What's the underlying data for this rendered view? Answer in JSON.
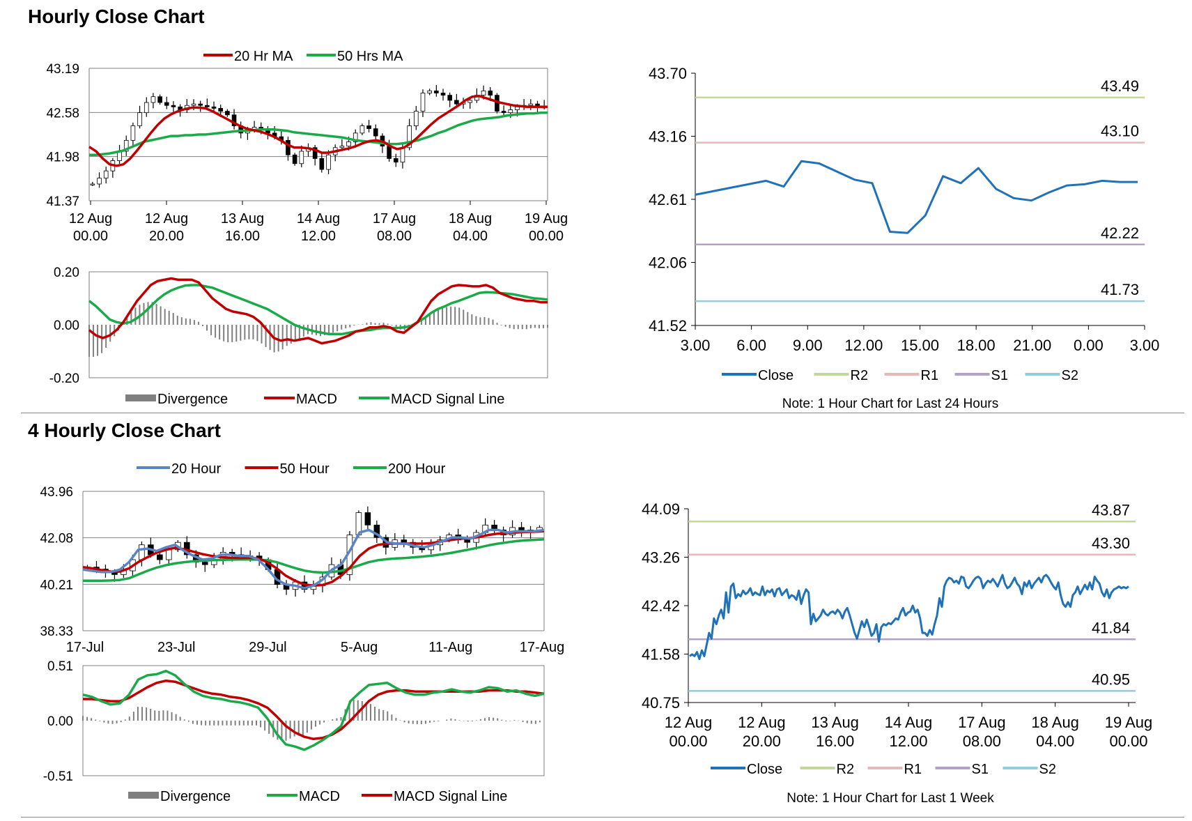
{
  "sections": [
    {
      "title": "Hourly Close Chart"
    },
    {
      "title": "4 Hourly Close Chart"
    }
  ],
  "colors": {
    "red": "#c00000",
    "green": "#1aaa4a",
    "blue": "#5b84c4",
    "close": "#1f72b8",
    "r2": "#c3d69b",
    "r1": "#e6b9b8",
    "s1": "#b3a2c7",
    "s2": "#93cddd",
    "grid": "#7f7f7f",
    "divergence": "#7f7f7f",
    "candle": "#000000"
  },
  "chart_data": [
    {
      "id": "h_price",
      "type": "candlestick",
      "title": "",
      "legend": [
        {
          "label": "20 Hr MA",
          "color": "red"
        },
        {
          "label": "50 Hrs MA",
          "color": "green"
        }
      ],
      "ylim": [
        41.37,
        43.19
      ],
      "yticks": [
        "43.19",
        "42.58",
        "41.98",
        "41.37"
      ],
      "xticks": [
        [
          "12 Aug",
          "00.00"
        ],
        [
          "12 Aug",
          "20.00"
        ],
        [
          "13 Aug",
          "16.00"
        ],
        [
          "14 Aug",
          "12.00"
        ],
        [
          "17 Aug",
          "08.00"
        ],
        [
          "18 Aug",
          "04.00"
        ],
        [
          "19 Aug",
          "00.00"
        ]
      ],
      "closes": [
        41.6,
        41.68,
        41.78,
        41.92,
        42.05,
        42.2,
        42.4,
        42.58,
        42.72,
        42.8,
        42.72,
        42.68,
        42.66,
        42.62,
        42.68,
        42.7,
        42.68,
        42.66,
        42.64,
        42.6,
        42.55,
        42.4,
        42.3,
        42.35,
        42.38,
        42.35,
        42.3,
        42.25,
        42.2,
        42.0,
        41.88,
        42.05,
        42.1,
        41.95,
        41.8,
        42.0,
        42.1,
        42.12,
        42.18,
        42.3,
        42.4,
        42.36,
        42.26,
        42.12,
        41.95,
        41.9,
        42.1,
        42.4,
        42.6,
        42.85,
        42.88,
        42.85,
        42.82,
        42.75,
        42.7,
        42.72,
        42.75,
        42.82,
        42.88,
        42.82,
        42.6,
        42.58,
        42.62,
        42.66,
        42.68,
        42.7,
        42.66,
        42.66
      ],
      "ma20": [
        42.11,
        42.05,
        41.95,
        41.87,
        41.85,
        41.87,
        41.95,
        42.06,
        42.18,
        42.3,
        42.41,
        42.5,
        42.56,
        42.6,
        42.63,
        42.65,
        42.65,
        42.64,
        42.6,
        42.55,
        42.5,
        42.45,
        42.4,
        42.36,
        42.34,
        42.32,
        42.29,
        42.25,
        42.2,
        42.14,
        42.1,
        42.1,
        42.09,
        42.07,
        42.03,
        42.03,
        42.05,
        42.07,
        42.09,
        42.12,
        42.16,
        42.19,
        42.2,
        42.18,
        42.12,
        42.08,
        42.1,
        42.16,
        42.24,
        42.33,
        42.42,
        42.5,
        42.56,
        42.62,
        42.68,
        42.75,
        42.8,
        42.81,
        42.78,
        42.75,
        42.72,
        42.7,
        42.68,
        42.67,
        42.66,
        42.66,
        42.66,
        42.66
      ],
      "ma50": [
        42.0,
        42.0,
        42.01,
        42.02,
        42.04,
        42.06,
        42.1,
        42.14,
        42.18,
        42.2,
        42.22,
        42.24,
        42.26,
        42.26,
        42.27,
        42.27,
        42.28,
        42.28,
        42.29,
        42.3,
        42.31,
        42.32,
        42.33,
        42.33,
        42.34,
        42.35,
        42.35,
        42.35,
        42.34,
        42.33,
        42.31,
        42.3,
        42.29,
        42.28,
        42.27,
        42.26,
        42.25,
        42.24,
        42.22,
        42.2,
        42.19,
        42.18,
        42.17,
        42.16,
        42.15,
        42.15,
        42.16,
        42.18,
        42.2,
        42.23,
        42.26,
        42.3,
        42.33,
        42.37,
        42.41,
        42.44,
        42.47,
        42.49,
        42.5,
        42.51,
        42.52,
        42.54,
        42.55,
        42.56,
        42.57,
        42.57,
        42.58,
        42.58
      ]
    },
    {
      "id": "h_macd",
      "type": "macd",
      "legend": [
        {
          "label": "Divergence",
          "color": "divergence",
          "kind": "bar"
        },
        {
          "label": "MACD",
          "color": "red"
        },
        {
          "label": "MACD Signal Line",
          "color": "green"
        }
      ],
      "ylim": [
        -0.2,
        0.2
      ],
      "yticks": [
        "0.20",
        "0.00",
        "-0.20"
      ],
      "macd": [
        -0.02,
        -0.04,
        -0.05,
        -0.04,
        -0.02,
        0.01,
        0.05,
        0.09,
        0.12,
        0.15,
        0.165,
        0.17,
        0.175,
        0.17,
        0.17,
        0.17,
        0.16,
        0.13,
        0.1,
        0.08,
        0.06,
        0.05,
        0.045,
        0.04,
        0.03,
        0.01,
        -0.02,
        -0.05,
        -0.06,
        -0.055,
        -0.06,
        -0.055,
        -0.05,
        -0.06,
        -0.07,
        -0.065,
        -0.06,
        -0.05,
        -0.04,
        -0.025,
        -0.02,
        -0.01,
        -0.01,
        -0.005,
        -0.01,
        -0.025,
        -0.03,
        -0.01,
        0.01,
        0.05,
        0.09,
        0.115,
        0.13,
        0.145,
        0.15,
        0.148,
        0.145,
        0.145,
        0.15,
        0.14,
        0.12,
        0.11,
        0.1,
        0.095,
        0.09,
        0.09,
        0.085,
        0.085
      ],
      "signal": [
        0.09,
        0.07,
        0.045,
        0.02,
        0.01,
        0.005,
        0.01,
        0.025,
        0.045,
        0.07,
        0.095,
        0.115,
        0.13,
        0.14,
        0.148,
        0.15,
        0.15,
        0.145,
        0.14,
        0.13,
        0.12,
        0.11,
        0.1,
        0.09,
        0.08,
        0.07,
        0.06,
        0.045,
        0.03,
        0.015,
        0.0,
        -0.01,
        -0.018,
        -0.025,
        -0.03,
        -0.035,
        -0.035,
        -0.035,
        -0.03,
        -0.025,
        -0.022,
        -0.02,
        -0.015,
        -0.012,
        -0.012,
        -0.012,
        -0.01,
        -0.005,
        0.01,
        0.025,
        0.045,
        0.06,
        0.07,
        0.082,
        0.09,
        0.1,
        0.11,
        0.12,
        0.123,
        0.122,
        0.12,
        0.118,
        0.115,
        0.11,
        0.105,
        0.1,
        0.098,
        0.095
      ]
    },
    {
      "id": "h_pivot",
      "type": "line",
      "ylim": [
        41.52,
        43.7
      ],
      "yticks": [
        "43.70",
        "43.16",
        "42.61",
        "42.06",
        "41.52"
      ],
      "xticks": [
        "3.00",
        "6.00",
        "9.00",
        "12.00",
        "15.00",
        "18.00",
        "21.00",
        "0.00",
        "3.00"
      ],
      "close": [
        42.65,
        42.68,
        42.71,
        42.74,
        42.77,
        42.72,
        42.94,
        42.92,
        42.85,
        42.78,
        42.75,
        42.33,
        42.32,
        42.47,
        42.81,
        42.75,
        42.88,
        42.7,
        42.62,
        42.6,
        42.67,
        42.73,
        42.74,
        42.77,
        42.76,
        42.76
      ],
      "levels": [
        {
          "name": "R2",
          "value": 43.49,
          "label": "43.49"
        },
        {
          "name": "R1",
          "value": 43.1,
          "label": "43.10"
        },
        {
          "name": "S1",
          "value": 42.22,
          "label": "42.22"
        },
        {
          "name": "S2",
          "value": 41.73,
          "label": "41.73"
        }
      ],
      "legend": [
        {
          "label": "Close",
          "color": "close"
        },
        {
          "label": "R2",
          "color": "r2"
        },
        {
          "label": "R1",
          "color": "r1"
        },
        {
          "label": "S1",
          "color": "s1"
        },
        {
          "label": "S2",
          "color": "s2"
        }
      ],
      "note": "Note: 1 Hour Chart for Last 24 Hours"
    },
    {
      "id": "h4_price",
      "type": "candlestick",
      "legend": [
        {
          "label": "20 Hour",
          "color": "blue"
        },
        {
          "label": "50 Hour",
          "color": "red"
        },
        {
          "label": "200 Hour",
          "color": "green"
        }
      ],
      "ylim": [
        38.33,
        43.96
      ],
      "yticks": [
        "43.96",
        "42.08",
        "40.21",
        "38.33"
      ],
      "xticks": [
        "17-Jul",
        "23-Jul",
        "29-Jul",
        "5-Aug",
        "11-Aug",
        "17-Aug"
      ],
      "closes": [
        40.9,
        40.82,
        40.7,
        40.6,
        40.75,
        41.2,
        41.8,
        41.4,
        41.2,
        41.6,
        41.9,
        41.4,
        41.1,
        41.0,
        41.2,
        41.5,
        41.4,
        41.3,
        41.35,
        41.2,
        40.8,
        40.2,
        40.0,
        40.3,
        40.0,
        40.15,
        40.5,
        41.0,
        40.6,
        42.2,
        43.1,
        42.6,
        42.1,
        41.7,
        42.0,
        41.9,
        41.7,
        41.6,
        41.8,
        42.0,
        42.2,
        42.0,
        41.9,
        42.3,
        42.6,
        42.4,
        42.2,
        42.5,
        42.3,
        42.4,
        42.5
      ],
      "ma20": [
        40.8,
        40.75,
        40.7,
        40.7,
        40.8,
        41.1,
        41.6,
        41.65,
        41.55,
        41.7,
        41.8,
        41.55,
        41.35,
        41.2,
        41.25,
        41.4,
        41.4,
        41.35,
        41.35,
        41.2,
        40.85,
        40.4,
        40.2,
        40.15,
        40.05,
        40.15,
        40.4,
        40.8,
        41.0,
        41.6,
        42.3,
        42.4,
        42.2,
        41.9,
        41.85,
        41.85,
        41.75,
        41.7,
        41.8,
        41.95,
        42.1,
        42.1,
        42.05,
        42.2,
        42.4,
        42.4,
        42.3,
        42.35,
        42.35,
        42.35,
        42.4
      ],
      "ma50": [
        40.9,
        40.85,
        40.78,
        40.72,
        40.72,
        40.85,
        41.1,
        41.3,
        41.48,
        41.6,
        41.68,
        41.62,
        41.52,
        41.42,
        41.35,
        41.3,
        41.28,
        41.27,
        41.28,
        41.25,
        41.1,
        40.85,
        40.55,
        40.35,
        40.2,
        40.15,
        40.18,
        40.3,
        40.55,
        40.9,
        41.35,
        41.65,
        41.8,
        41.85,
        41.85,
        41.85,
        41.85,
        41.85,
        41.88,
        41.95,
        42.0,
        42.05,
        42.07,
        42.12,
        42.2,
        42.25,
        42.27,
        42.3,
        42.32,
        42.33,
        42.35
      ],
      "ma200": [
        40.35,
        40.35,
        40.35,
        40.36,
        40.38,
        40.45,
        40.6,
        40.75,
        40.88,
        40.98,
        41.05,
        41.1,
        41.14,
        41.16,
        41.18,
        41.19,
        41.2,
        41.21,
        41.21,
        41.2,
        41.18,
        41.1,
        40.98,
        40.86,
        40.76,
        40.7,
        40.68,
        40.7,
        40.75,
        40.85,
        40.98,
        41.1,
        41.18,
        41.22,
        41.25,
        41.27,
        41.3,
        41.33,
        41.37,
        41.42,
        41.48,
        41.55,
        41.62,
        41.7,
        41.78,
        41.85,
        41.9,
        41.95,
        41.98,
        42.0,
        42.02
      ]
    },
    {
      "id": "h4_macd",
      "type": "macd",
      "legend": [
        {
          "label": "Divergence",
          "color": "divergence",
          "kind": "bar"
        },
        {
          "label": "MACD",
          "color": "green"
        },
        {
          "label": "MACD Signal Line",
          "color": "red"
        }
      ],
      "ylim": [
        -0.51,
        0.51
      ],
      "yticks": [
        "0.51",
        "0.00",
        "-0.51"
      ],
      "macd": [
        0.24,
        0.22,
        0.18,
        0.15,
        0.16,
        0.24,
        0.38,
        0.42,
        0.43,
        0.46,
        0.42,
        0.34,
        0.27,
        0.23,
        0.21,
        0.2,
        0.18,
        0.17,
        0.15,
        0.12,
        0.02,
        -0.12,
        -0.22,
        -0.24,
        -0.27,
        -0.23,
        -0.18,
        -0.12,
        -0.05,
        0.18,
        0.26,
        0.33,
        0.34,
        0.35,
        0.3,
        0.26,
        0.24,
        0.24,
        0.26,
        0.27,
        0.29,
        0.27,
        0.26,
        0.28,
        0.31,
        0.3,
        0.27,
        0.28,
        0.25,
        0.23,
        0.25
      ],
      "signal": [
        0.2,
        0.2,
        0.19,
        0.18,
        0.18,
        0.21,
        0.26,
        0.31,
        0.35,
        0.37,
        0.36,
        0.33,
        0.3,
        0.27,
        0.25,
        0.24,
        0.22,
        0.21,
        0.19,
        0.16,
        0.12,
        0.04,
        -0.05,
        -0.11,
        -0.15,
        -0.17,
        -0.16,
        -0.13,
        -0.08,
        0.0,
        0.09,
        0.18,
        0.24,
        0.27,
        0.28,
        0.28,
        0.27,
        0.27,
        0.27,
        0.27,
        0.27,
        0.27,
        0.27,
        0.27,
        0.28,
        0.28,
        0.28,
        0.27,
        0.27,
        0.26,
        0.25
      ]
    },
    {
      "id": "h4_pivot",
      "type": "line",
      "ylim": [
        40.75,
        44.09
      ],
      "yticks": [
        "44.09",
        "43.26",
        "42.42",
        "41.58",
        "40.75"
      ],
      "xticks": [
        [
          "12 Aug",
          "00.00"
        ],
        [
          "12 Aug",
          "20.00"
        ],
        [
          "13 Aug",
          "16.00"
        ],
        [
          "14 Aug",
          "12.00"
        ],
        [
          "17 Aug",
          "08.00"
        ],
        [
          "18 Aug",
          "04.00"
        ],
        [
          "19 Aug",
          "00.00"
        ]
      ],
      "close": [
        41.55,
        41.58,
        41.55,
        41.62,
        41.5,
        41.65,
        41.55,
        41.75,
        41.95,
        41.85,
        42.2,
        42.1,
        42.25,
        42.35,
        42.2,
        42.65,
        42.3,
        42.75,
        42.8,
        42.55,
        42.62,
        42.58,
        42.68,
        42.62,
        42.65,
        42.72,
        42.6,
        42.65,
        42.62,
        42.6,
        42.75,
        42.6,
        42.68,
        42.65,
        42.7,
        42.58,
        42.7,
        42.72,
        42.6,
        42.65,
        42.7,
        42.55,
        42.6,
        42.58,
        42.52,
        42.68,
        42.45,
        42.6,
        42.7,
        42.65,
        42.1,
        42.28,
        42.15,
        42.2,
        42.25,
        42.35,
        42.28,
        42.25,
        42.3,
        42.32,
        42.28,
        42.35,
        42.3,
        42.2,
        42.32,
        42.38,
        42.25,
        42.1,
        41.95,
        41.85,
        42.0,
        42.15,
        42.05,
        42.18,
        42.05,
        41.9,
        41.95,
        42.1,
        41.8,
        42.05,
        42.1,
        42.08,
        42.12,
        42.1,
        42.15,
        42.2,
        42.18,
        42.3,
        42.38,
        42.25,
        42.3,
        42.32,
        42.42,
        42.3,
        42.35,
        42.2,
        41.95,
        41.95,
        41.9,
        42.0,
        41.92,
        42.1,
        42.25,
        42.55,
        42.4,
        42.75,
        42.85,
        42.9,
        42.88,
        42.82,
        42.85,
        42.8,
        42.92,
        42.9,
        42.75,
        42.72,
        42.78,
        42.85,
        42.9,
        42.92,
        42.88,
        42.72,
        42.8,
        42.85,
        42.82,
        42.88,
        42.82,
        42.75,
        42.85,
        42.95,
        42.8,
        42.72,
        42.75,
        42.82,
        42.9,
        42.8,
        42.75,
        42.62,
        42.82,
        42.75,
        42.85,
        42.72,
        42.8,
        42.85,
        42.9,
        42.82,
        42.92,
        42.95,
        42.9,
        42.82,
        42.75,
        42.7,
        42.82,
        42.6,
        42.45,
        42.4,
        42.48,
        42.4,
        42.6,
        42.65,
        42.75,
        42.62,
        42.7,
        42.78,
        42.7,
        42.82,
        42.7,
        42.92,
        42.85,
        42.8,
        42.65,
        42.58,
        42.7,
        42.55,
        42.65,
        42.7,
        42.72,
        42.75,
        42.72,
        42.74,
        42.72,
        42.75
      ],
      "levels": [
        {
          "name": "R2",
          "value": 43.87,
          "label": "43.87"
        },
        {
          "name": "R1",
          "value": 43.3,
          "label": "43.30"
        },
        {
          "name": "S1",
          "value": 41.84,
          "label": "41.84"
        },
        {
          "name": "S2",
          "value": 40.95,
          "label": "40.95"
        }
      ],
      "legend": [
        {
          "label": "Close",
          "color": "close"
        },
        {
          "label": "R2",
          "color": "r2"
        },
        {
          "label": "R1",
          "color": "r1"
        },
        {
          "label": "S1",
          "color": "s1"
        },
        {
          "label": "S2",
          "color": "s2"
        }
      ],
      "note": "Note: 1 Hour Chart for Last 1 Week"
    }
  ]
}
